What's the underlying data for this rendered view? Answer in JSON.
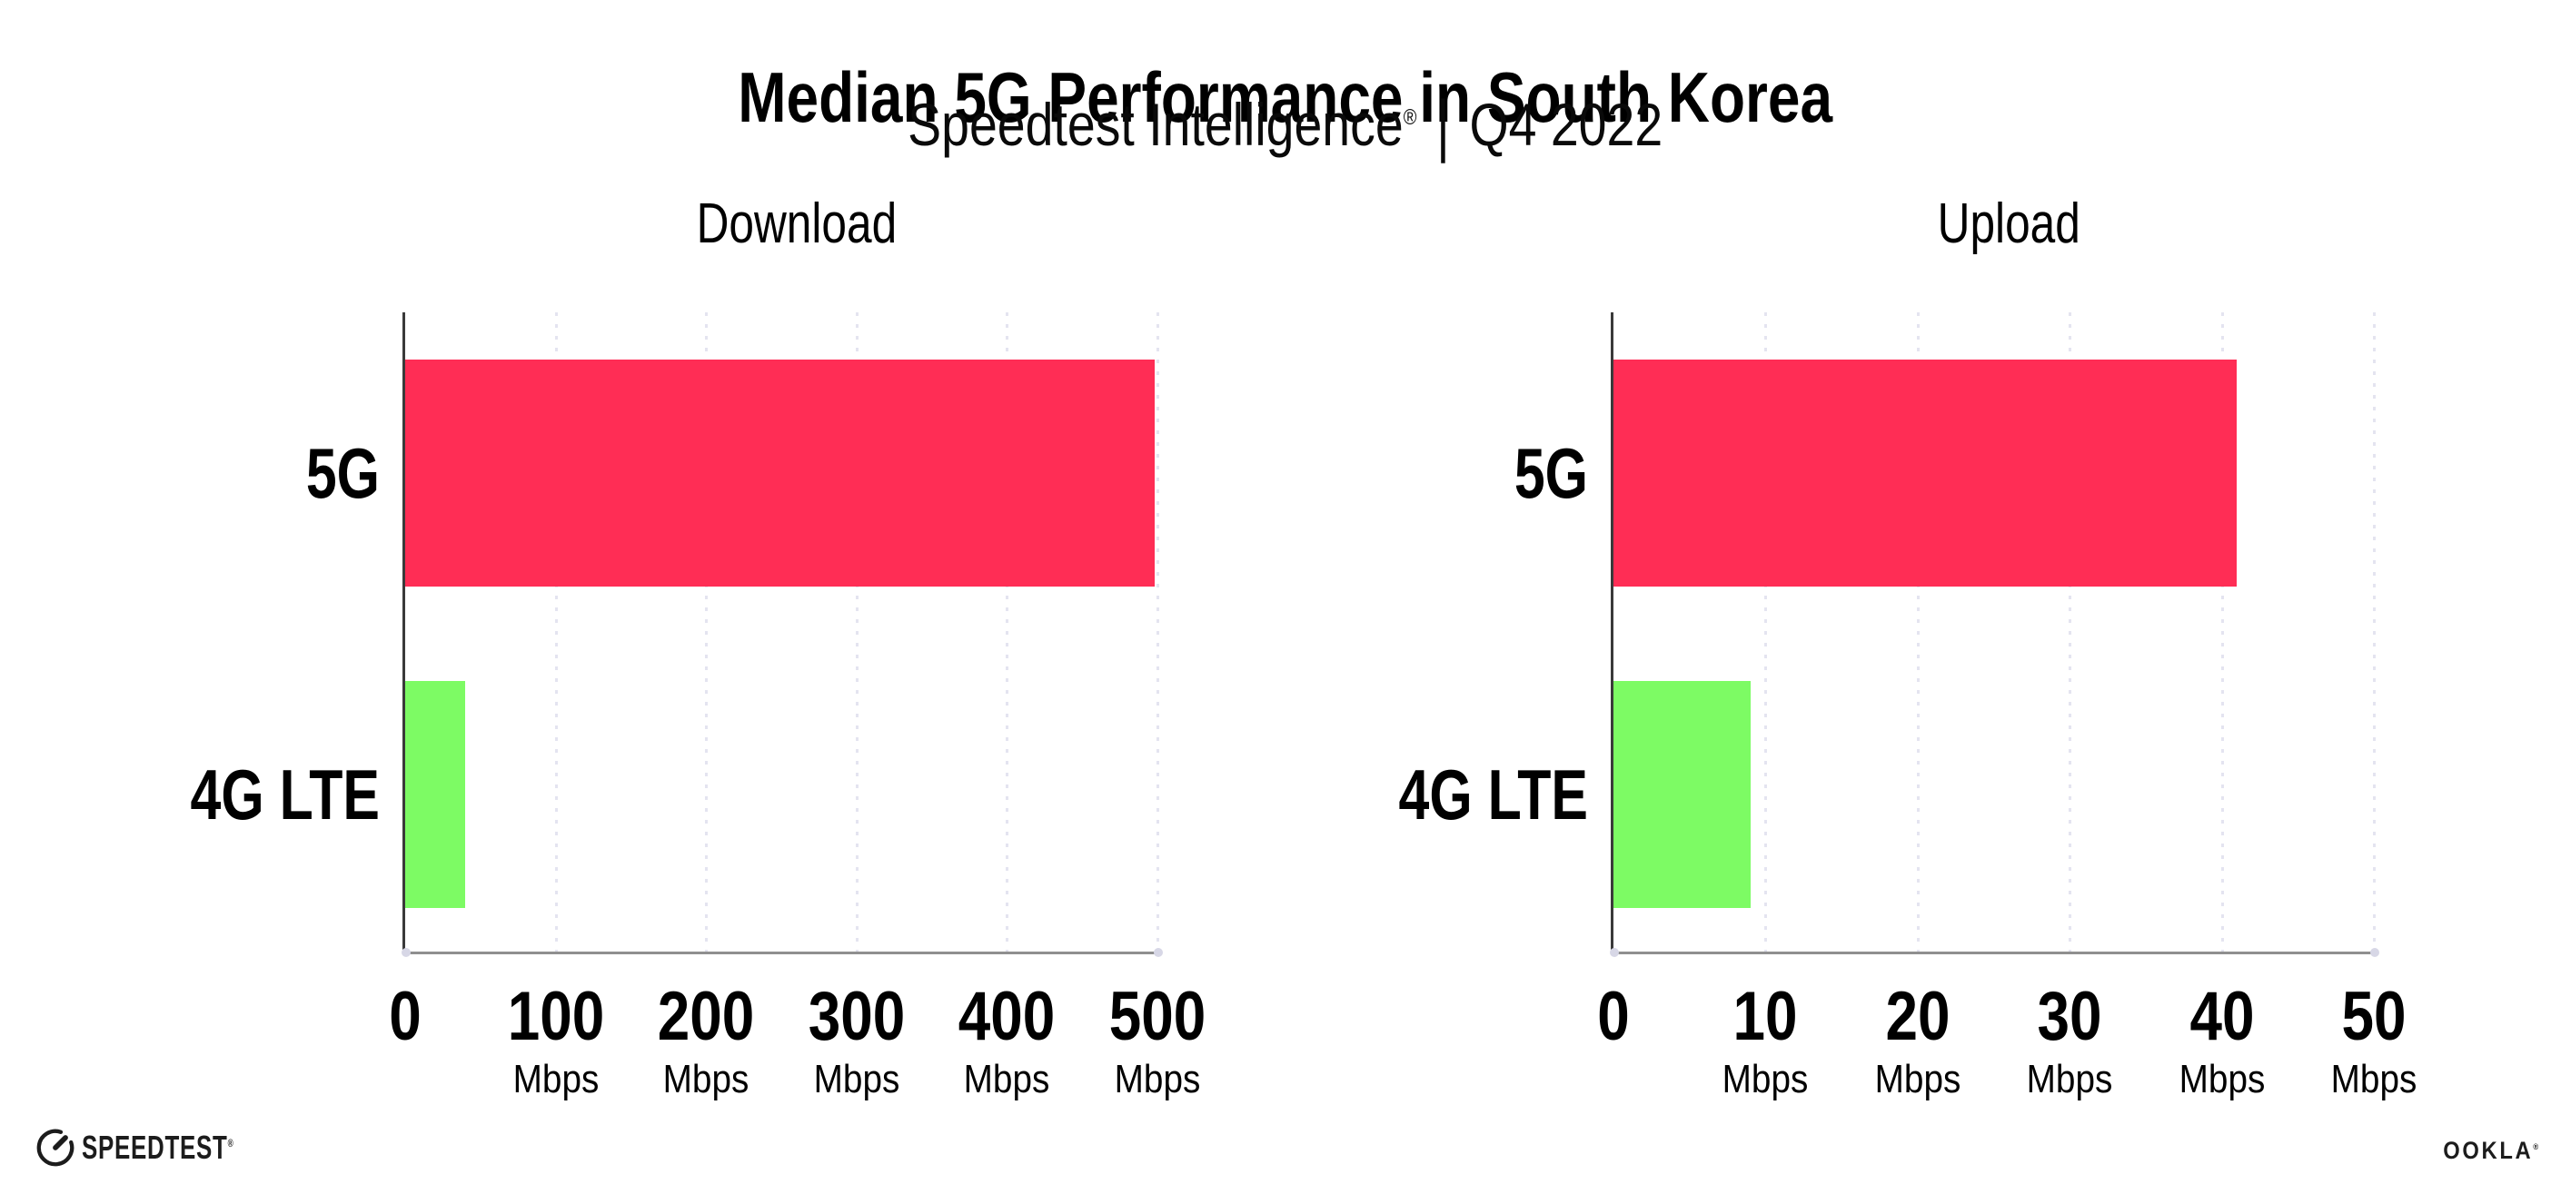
{
  "header": {
    "title": "Median 5G Performance in South Korea",
    "subtitle": {
      "brand": "Speedtest Intelligence",
      "registered": "®",
      "separator": "|",
      "period": "Q4 2022"
    }
  },
  "chart_data": [
    {
      "type": "bar",
      "orientation": "horizontal",
      "title": "Download",
      "categories": [
        "5G",
        "4G LTE"
      ],
      "values": [
        498,
        40
      ],
      "unit": "Mbps",
      "xlim": [
        0,
        500
      ],
      "xticks": [
        0,
        100,
        200,
        300,
        400,
        500
      ],
      "bar_colors": [
        "#ff2d55",
        "#7dfb64"
      ],
      "grid": "vertical-dotted",
      "legend": "none"
    },
    {
      "type": "bar",
      "orientation": "horizontal",
      "title": "Upload",
      "categories": [
        "5G",
        "4G LTE"
      ],
      "values": [
        41,
        9
      ],
      "unit": "Mbps",
      "xlim": [
        0,
        50
      ],
      "xticks": [
        0,
        10,
        20,
        30,
        40,
        50
      ],
      "bar_colors": [
        "#ff2d55",
        "#7dfb64"
      ],
      "grid": "vertical-dotted",
      "legend": "none"
    }
  ],
  "footer": {
    "speedtest_logo_text": "SPEEDTEST",
    "speedtest_registered": "®",
    "ookla_logo_text": "OOKLA",
    "ookla_registered": "®"
  },
  "colors": {
    "bar_5g": "#ff2d55",
    "bar_4g_lte": "#7dfb64",
    "gridline": "#e4e4f0",
    "axis_line": "#8f8f8f",
    "axis_spine": "#3a3a3a",
    "background": "#ffffff",
    "text": "#000000"
  }
}
